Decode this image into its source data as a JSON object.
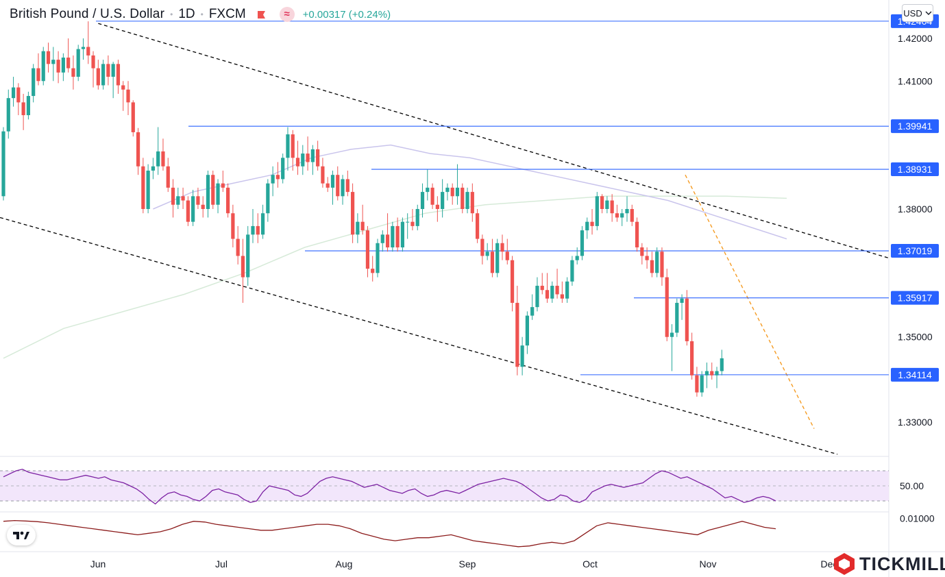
{
  "header": {
    "symbol": "British Pound / U.S. Dollar",
    "interval": "1D",
    "source": "FXCM",
    "change": "+0.00317 (+0.24%)"
  },
  "currency_button": {
    "label": "USD",
    "icon": "chevron-down-icon"
  },
  "brand": {
    "name": "TICKMILL",
    "icon": "tickmill-logo-icon"
  },
  "watermark": {
    "icon": "tradingview-logo-icon"
  },
  "colors": {
    "up": "#26a69a",
    "down": "#ef5350",
    "level": "#2962ff",
    "channel": "#000000",
    "trend": "#f59b22",
    "ma_fast": "#c9c4ec",
    "ma_slow": "#d6ead8",
    "rsi": "#7b1fa2",
    "rsi_band": "#f2e6fb",
    "indicator2": "#8b1a1a"
  },
  "chart_data": {
    "type": "candlestick",
    "title": "British Pound / U.S. Dollar · 1D · FXCM",
    "x_tick_labels": [
      "Jun",
      "Jul",
      "Aug",
      "Sep",
      "Oct",
      "Nov",
      "Dec"
    ],
    "y_tick_labels": [
      "1.42000",
      "1.41000",
      "1.38000",
      "1.35000",
      "1.33000"
    ],
    "y_range": [
      1.322,
      1.429
    ],
    "candles": [
      [
        1.383,
        1.3992,
        1.382,
        1.3982
      ],
      [
        1.3982,
        1.408,
        1.3965,
        1.406
      ],
      [
        1.406,
        1.411,
        1.404,
        1.4085
      ],
      [
        1.4085,
        1.4095,
        1.402,
        1.405
      ],
      [
        1.405,
        1.407,
        1.3985,
        1.402
      ],
      [
        1.402,
        1.4075,
        1.401,
        1.4065
      ],
      [
        1.4065,
        1.414,
        1.405,
        1.413
      ],
      [
        1.413,
        1.4165,
        1.409,
        1.41
      ],
      [
        1.41,
        1.418,
        1.409,
        1.417
      ],
      [
        1.417,
        1.419,
        1.412,
        1.414
      ],
      [
        1.414,
        1.418,
        1.41,
        1.415
      ],
      [
        1.415,
        1.417,
        1.4095,
        1.412
      ],
      [
        1.412,
        1.4165,
        1.41,
        1.4155
      ],
      [
        1.4155,
        1.42,
        1.412,
        1.413
      ],
      [
        1.413,
        1.416,
        1.408,
        1.411
      ],
      [
        1.411,
        1.4185,
        1.41,
        1.4175
      ],
      [
        1.4175,
        1.42,
        1.415,
        1.418
      ],
      [
        1.418,
        1.424,
        1.414,
        1.416
      ],
      [
        1.416,
        1.417,
        1.4085,
        1.413
      ],
      [
        1.413,
        1.415,
        1.408,
        1.409
      ],
      [
        1.409,
        1.415,
        1.408,
        1.414
      ],
      [
        1.414,
        1.416,
        1.409,
        1.411
      ],
      [
        1.411,
        1.4145,
        1.406,
        1.414
      ],
      [
        1.414,
        1.415,
        1.407,
        1.409
      ],
      [
        1.409,
        1.41,
        1.403,
        1.408
      ],
      [
        1.408,
        1.41,
        1.402,
        1.405
      ],
      [
        1.405,
        1.4055,
        1.397,
        1.398
      ],
      [
        1.398,
        1.399,
        1.388,
        1.39
      ],
      [
        1.39,
        1.392,
        1.379,
        1.38
      ],
      [
        1.38,
        1.3905,
        1.379,
        1.389
      ],
      [
        1.389,
        1.392,
        1.387,
        1.39
      ],
      [
        1.39,
        1.3992,
        1.388,
        1.3935
      ],
      [
        1.3935,
        1.3965,
        1.389,
        1.39
      ],
      [
        1.39,
        1.392,
        1.384,
        1.385
      ],
      [
        1.385,
        1.387,
        1.378,
        1.381
      ],
      [
        1.381,
        1.385,
        1.38,
        1.383
      ],
      [
        1.383,
        1.385,
        1.38,
        1.382
      ],
      [
        1.382,
        1.383,
        1.376,
        1.377
      ],
      [
        1.377,
        1.3845,
        1.376,
        1.383
      ],
      [
        1.383,
        1.385,
        1.38,
        1.381
      ],
      [
        1.381,
        1.383,
        1.378,
        1.38
      ],
      [
        1.38,
        1.389,
        1.378,
        1.388
      ],
      [
        1.388,
        1.389,
        1.38,
        1.381
      ],
      [
        1.381,
        1.387,
        1.379,
        1.386
      ],
      [
        1.386,
        1.389,
        1.384,
        1.385
      ],
      [
        1.385,
        1.386,
        1.378,
        1.379
      ],
      [
        1.379,
        1.381,
        1.371,
        1.373
      ],
      [
        1.373,
        1.376,
        1.367,
        1.369
      ],
      [
        1.369,
        1.373,
        1.358,
        1.364
      ],
      [
        1.364,
        1.376,
        1.362,
        1.374
      ],
      [
        1.374,
        1.38,
        1.372,
        1.376
      ],
      [
        1.376,
        1.379,
        1.372,
        1.374
      ],
      [
        1.374,
        1.381,
        1.373,
        1.379
      ],
      [
        1.379,
        1.387,
        1.377,
        1.386
      ],
      [
        1.386,
        1.39,
        1.383,
        1.388
      ],
      [
        1.388,
        1.391,
        1.385,
        1.387
      ],
      [
        1.387,
        1.393,
        1.386,
        1.392
      ],
      [
        1.392,
        1.3992,
        1.389,
        1.3975
      ],
      [
        1.3975,
        1.3985,
        1.389,
        1.392
      ],
      [
        1.392,
        1.396,
        1.388,
        1.39
      ],
      [
        1.39,
        1.395,
        1.388,
        1.393
      ],
      [
        1.393,
        1.397,
        1.389,
        1.391
      ],
      [
        1.391,
        1.395,
        1.388,
        1.394
      ],
      [
        1.394,
        1.396,
        1.389,
        1.39
      ],
      [
        1.39,
        1.392,
        1.385,
        1.386
      ],
      [
        1.386,
        1.3875,
        1.384,
        1.385
      ],
      [
        1.385,
        1.389,
        1.381,
        1.388
      ],
      [
        1.388,
        1.39,
        1.382,
        1.383
      ],
      [
        1.383,
        1.388,
        1.381,
        1.387
      ],
      [
        1.387,
        1.389,
        1.383,
        1.384
      ],
      [
        1.384,
        1.386,
        1.372,
        1.374
      ],
      [
        1.374,
        1.379,
        1.372,
        1.377
      ],
      [
        1.377,
        1.381,
        1.374,
        1.375
      ],
      [
        1.375,
        1.376,
        1.364,
        1.366
      ],
      [
        1.366,
        1.369,
        1.363,
        1.365
      ],
      [
        1.365,
        1.373,
        1.364,
        1.372
      ],
      [
        1.372,
        1.375,
        1.37,
        1.374
      ],
      [
        1.374,
        1.379,
        1.37,
        1.371
      ],
      [
        1.371,
        1.377,
        1.37,
        1.376
      ],
      [
        1.376,
        1.378,
        1.37,
        1.371
      ],
      [
        1.371,
        1.378,
        1.37,
        1.377
      ],
      [
        1.377,
        1.379,
        1.373,
        1.377
      ],
      [
        1.377,
        1.38,
        1.375,
        1.376
      ],
      [
        1.376,
        1.381,
        1.375,
        1.38
      ],
      [
        1.38,
        1.386,
        1.378,
        1.384
      ],
      [
        1.384,
        1.3893,
        1.382,
        1.385
      ],
      [
        1.385,
        1.386,
        1.38,
        1.381
      ],
      [
        1.381,
        1.383,
        1.377,
        1.38
      ],
      [
        1.38,
        1.387,
        1.378,
        1.384
      ],
      [
        1.384,
        1.386,
        1.382,
        1.385
      ],
      [
        1.385,
        1.386,
        1.381,
        1.383
      ],
      [
        1.383,
        1.3905,
        1.381,
        1.385
      ],
      [
        1.385,
        1.386,
        1.379,
        1.38
      ],
      [
        1.38,
        1.385,
        1.379,
        1.384
      ],
      [
        1.384,
        1.386,
        1.377,
        1.379
      ],
      [
        1.379,
        1.38,
        1.372,
        1.373
      ],
      [
        1.373,
        1.374,
        1.367,
        1.369
      ],
      [
        1.369,
        1.372,
        1.368,
        1.37
      ],
      [
        1.37,
        1.373,
        1.364,
        1.365
      ],
      [
        1.365,
        1.373,
        1.364,
        1.372
      ],
      [
        1.372,
        1.374,
        1.368,
        1.37
      ],
      [
        1.37,
        1.373,
        1.367,
        1.368
      ],
      [
        1.368,
        1.369,
        1.356,
        1.358
      ],
      [
        1.358,
        1.362,
        1.341,
        1.343
      ],
      [
        1.343,
        1.35,
        1.341,
        1.348
      ],
      [
        1.348,
        1.356,
        1.346,
        1.355
      ],
      [
        1.355,
        1.36,
        1.354,
        1.357
      ],
      [
        1.357,
        1.364,
        1.356,
        1.362
      ],
      [
        1.362,
        1.365,
        1.36,
        1.361
      ],
      [
        1.361,
        1.365,
        1.358,
        1.359
      ],
      [
        1.359,
        1.363,
        1.358,
        1.362
      ],
      [
        1.362,
        1.366,
        1.359,
        1.36
      ],
      [
        1.36,
        1.363,
        1.358,
        1.359
      ],
      [
        1.359,
        1.364,
        1.358,
        1.363
      ],
      [
        1.363,
        1.369,
        1.362,
        1.368
      ],
      [
        1.368,
        1.371,
        1.367,
        1.369
      ],
      [
        1.369,
        1.376,
        1.368,
        1.375
      ],
      [
        1.375,
        1.378,
        1.373,
        1.377
      ],
      [
        1.377,
        1.38,
        1.374,
        1.376
      ],
      [
        1.376,
        1.384,
        1.375,
        1.383
      ],
      [
        1.383,
        1.3835,
        1.379,
        1.38
      ],
      [
        1.38,
        1.383,
        1.379,
        1.382
      ],
      [
        1.382,
        1.3835,
        1.377,
        1.379
      ],
      [
        1.379,
        1.381,
        1.377,
        1.378
      ],
      [
        1.378,
        1.38,
        1.376,
        1.379
      ],
      [
        1.379,
        1.383,
        1.377,
        1.38
      ],
      [
        1.38,
        1.381,
        1.376,
        1.377
      ],
      [
        1.377,
        1.378,
        1.37,
        1.371
      ],
      [
        1.371,
        1.372,
        1.367,
        1.369
      ],
      [
        1.369,
        1.371,
        1.366,
        1.368
      ],
      [
        1.368,
        1.37,
        1.364,
        1.365
      ],
      [
        1.365,
        1.371,
        1.364,
        1.37
      ],
      [
        1.37,
        1.371,
        1.362,
        1.364
      ],
      [
        1.364,
        1.366,
        1.349,
        1.35
      ],
      [
        1.35,
        1.353,
        1.342,
        1.351
      ],
      [
        1.351,
        1.359,
        1.35,
        1.358
      ],
      [
        1.358,
        1.36,
        1.354,
        1.359
      ],
      [
        1.359,
        1.361,
        1.348,
        1.349
      ],
      [
        1.349,
        1.351,
        1.34,
        1.341
      ],
      [
        1.341,
        1.343,
        1.336,
        1.337
      ],
      [
        1.337,
        1.342,
        1.336,
        1.341
      ],
      [
        1.341,
        1.344,
        1.338,
        1.342
      ],
      [
        1.342,
        1.344,
        1.34,
        1.341
      ],
      [
        1.341,
        1.343,
        1.338,
        1.342
      ],
      [
        1.342,
        1.347,
        1.341,
        1.345
      ]
    ],
    "horizontal_levels": [
      {
        "label": "1.42404",
        "value": 1.42404
      },
      {
        "label": "1.39941",
        "value": 1.39941
      },
      {
        "label": "1.38931",
        "value": 1.38931
      },
      {
        "label": "1.37019",
        "value": 1.37019
      },
      {
        "label": "1.35917",
        "value": 1.35917
      },
      {
        "label": "1.34114",
        "value": 1.34114
      }
    ],
    "moving_averages": {
      "fast": [
        1.38,
        1.384,
        1.386,
        1.388,
        1.392,
        1.394,
        1.395,
        1.393,
        1.392,
        1.39,
        1.388,
        1.386,
        1.384,
        1.382,
        1.379,
        1.376,
        1.373
      ],
      "slow": [
        1.345,
        1.352,
        1.356,
        1.36,
        1.365,
        1.371,
        1.375,
        1.379,
        1.381,
        1.382,
        1.383,
        1.383,
        1.383,
        1.3825
      ]
    },
    "rsi": {
      "label": "50.00",
      "band": [
        30,
        70
      ],
      "values": [
        62,
        66,
        70,
        72,
        68,
        66,
        64,
        62,
        60,
        58,
        58,
        60,
        62,
        64,
        62,
        60,
        62,
        58,
        56,
        54,
        50,
        46,
        40,
        32,
        26,
        34,
        40,
        42,
        38,
        36,
        32,
        30,
        36,
        44,
        46,
        42,
        40,
        38,
        32,
        28,
        30,
        42,
        50,
        48,
        46,
        44,
        38,
        36,
        40,
        48,
        56,
        60,
        62,
        60,
        58,
        56,
        52,
        48,
        50,
        52,
        48,
        44,
        42,
        40,
        44,
        46,
        40,
        36,
        38,
        42,
        44,
        42,
        40,
        44,
        48,
        52,
        54,
        56,
        58,
        60,
        58,
        56,
        52,
        46,
        40,
        34,
        30,
        32,
        38,
        36,
        30,
        28,
        32,
        42,
        46,
        50,
        52,
        50,
        48,
        50,
        52,
        54,
        60,
        66,
        70,
        68,
        64,
        60,
        62,
        58,
        54,
        50,
        46,
        40,
        34,
        36,
        32,
        28,
        30,
        34,
        36,
        34,
        30
      ]
    },
    "indicator2": {
      "label": "0.01000",
      "values": [
        0.008,
        0.0085,
        0.0082,
        0.0078,
        0.007,
        0.006,
        0.005,
        0.004,
        0.003,
        0.002,
        0.001,
        0.0,
        -0.001,
        0.0,
        0.001,
        0.003,
        0.006,
        0.008,
        0.0075,
        0.006,
        0.005,
        0.004,
        0.003,
        0.002,
        0.002,
        0.003,
        0.004,
        0.005,
        0.006,
        0.006,
        0.005,
        0.003,
        0.0,
        -0.002,
        -0.004,
        -0.005,
        -0.004,
        -0.003,
        -0.003,
        -0.002,
        -0.001,
        -0.003,
        -0.005,
        -0.006,
        -0.007,
        -0.008,
        -0.009,
        -0.0085,
        -0.007,
        -0.006,
        -0.007,
        -0.005,
        0.0,
        0.005,
        0.007,
        0.006,
        0.005,
        0.004,
        0.003,
        0.002,
        0.001,
        0.0,
        -0.001,
        0.002,
        0.004,
        0.006,
        0.008,
        0.006,
        0.004,
        0.003
      ]
    }
  }
}
